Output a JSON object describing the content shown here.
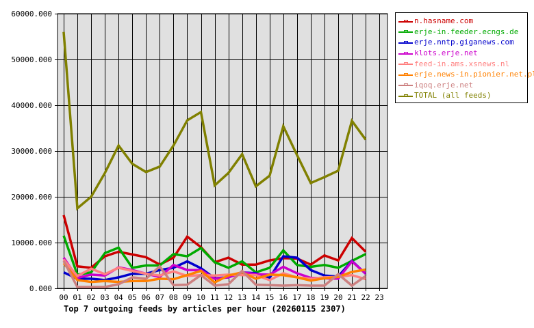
{
  "chart_data": {
    "type": "line",
    "title": "Top 7 outgoing feeds by articles per hour (20260115 2307)",
    "xlabel": "",
    "ylabel": "",
    "ylim": [
      0,
      60000
    ],
    "yticks": [
      "0.000",
      "10000.000",
      "20000.000",
      "30000.000",
      "40000.000",
      "50000.000",
      "60000.000"
    ],
    "grid": true,
    "legend_position": "right",
    "categories": [
      "00",
      "01",
      "02",
      "03",
      "04",
      "05",
      "06",
      "07",
      "08",
      "09",
      "10",
      "11",
      "12",
      "13",
      "14",
      "15",
      "16",
      "17",
      "18",
      "19",
      "20",
      "21",
      "22",
      "23"
    ],
    "series": [
      {
        "name": "n.hasname.com",
        "color": "#cc0000",
        "values": [
          16000,
          4800,
          4500,
          7000,
          8000,
          7400,
          6800,
          5200,
          6700,
          11300,
          9000,
          5700,
          6700,
          5200,
          5200,
          6100,
          6600,
          6500,
          5200,
          7200,
          6100,
          11000,
          8000
        ]
      },
      {
        "name": "erje-in.feeder.ecngs.de",
        "color": "#00aa00",
        "values": [
          11500,
          3000,
          3500,
          7700,
          8900,
          4500,
          5000,
          5000,
          7500,
          7000,
          8800,
          5700,
          4500,
          5900,
          3500,
          4500,
          8300,
          5100,
          4700,
          5100,
          4500,
          6000,
          7500
        ]
      },
      {
        "name": "erje.nntp.giganews.com",
        "color": "#0000cc",
        "values": [
          3500,
          2100,
          2100,
          1800,
          2400,
          3200,
          3200,
          4000,
          4500,
          5900,
          4400,
          2200,
          2400,
          3500,
          3300,
          2300,
          7000,
          6700,
          4000,
          2800,
          2600,
          6000,
          3200
        ]
      },
      {
        "name": "klots.erje.net",
        "color": "#cc00cc",
        "values": [
          6700,
          2300,
          3000,
          2800,
          4600,
          4000,
          3200,
          2500,
          5100,
          4000,
          4000,
          2100,
          2400,
          3500,
          3100,
          3000,
          4700,
          3300,
          2300,
          2200,
          2100,
          5900,
          3200
        ]
      },
      {
        "name": "feed-in.ams.xsnews.nl",
        "color": "#ff8080",
        "values": [
          6300,
          2700,
          4300,
          3100,
          4500,
          3800,
          3200,
          2800,
          3700,
          2700,
          2900,
          2800,
          3000,
          2900,
          2900,
          1800,
          3300,
          2400,
          2100,
          2400,
          2500,
          2900,
          2000
        ]
      },
      {
        "name": "erje.news-in.pionier.net.pl",
        "color": "#ff8000",
        "values": [
          5500,
          1800,
          1400,
          1600,
          1400,
          1600,
          1600,
          2100,
          2000,
          2900,
          3800,
          1300,
          2800,
          3500,
          2100,
          3000,
          2900,
          2400,
          1700,
          2200,
          2500,
          3600,
          4100
        ]
      },
      {
        "name": "iqoq.erje.net",
        "color": "#cc8080",
        "values": [
          6000,
          300,
          300,
          300,
          900,
          2400,
          2100,
          4800,
          700,
          800,
          2900,
          600,
          900,
          3800,
          800,
          700,
          600,
          700,
          600,
          600,
          3100,
          600,
          2700
        ]
      },
      {
        "name": "TOTAL (all feeds)",
        "color": "#808000",
        "values": [
          56000,
          17500,
          20000,
          25200,
          31200,
          27200,
          25400,
          26600,
          31200,
          36700,
          38500,
          22500,
          25200,
          29300,
          22300,
          24600,
          35400,
          29100,
          23000,
          24300,
          25700,
          36600,
          32500
        ]
      }
    ]
  },
  "legend": {
    "items": [
      {
        "label": "n.hasname.com",
        "color": "#cc0000"
      },
      {
        "label": "erje-in.feeder.ecngs.de",
        "color": "#00aa00"
      },
      {
        "label": "erje.nntp.giganews.com",
        "color": "#0000cc"
      },
      {
        "label": "klots.erje.net",
        "color": "#cc00cc"
      },
      {
        "label": "feed-in.ams.xsnews.nl",
        "color": "#ff8080"
      },
      {
        "label": "erje.news-in.pionier.net.pl",
        "color": "#ff8000"
      },
      {
        "label": "iqoq.erje.net",
        "color": "#cc8080"
      },
      {
        "label": "TOTAL (all feeds)",
        "color": "#808000"
      }
    ]
  },
  "style": {
    "plot_bg": "#e0e0e0",
    "grid_color": "#000000"
  }
}
